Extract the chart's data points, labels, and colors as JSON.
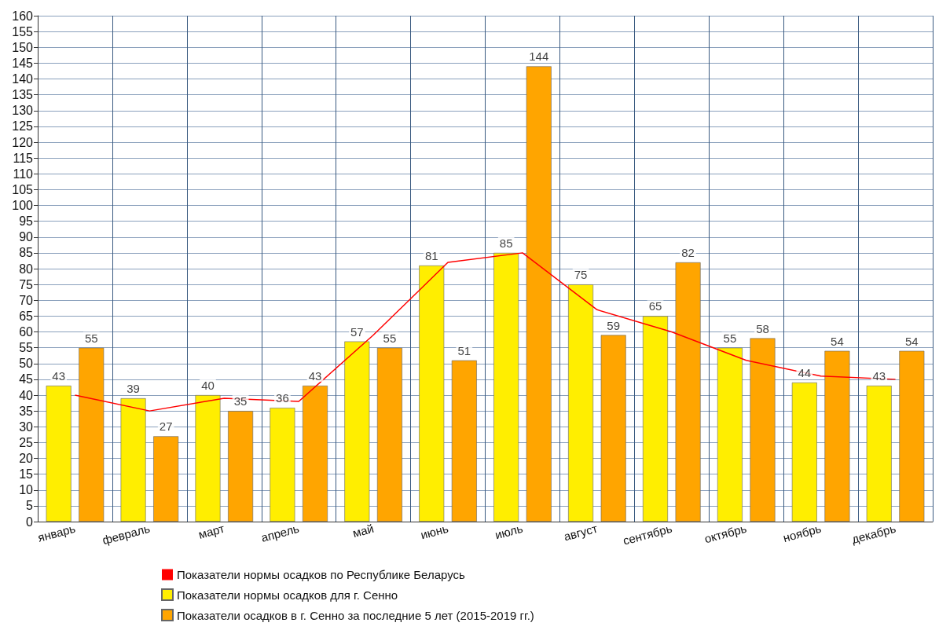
{
  "chart_data": {
    "type": "bar",
    "categories": [
      "январь",
      "февраль",
      "март",
      "апрель",
      "май",
      "июнь",
      "июль",
      "август",
      "сентябрь",
      "октябрь",
      "ноябрь",
      "декабрь"
    ],
    "series": [
      {
        "name": "Показатели нормы осадков по Республике Беларусь",
        "type": "line",
        "color": "#ff0000",
        "values": [
          40,
          35,
          39,
          38,
          59,
          82,
          85,
          67,
          60,
          51,
          46,
          45
        ]
      },
      {
        "name": "Показатели нормы осадков для г. Сенно",
        "color": "#ffee00",
        "values": [
          43,
          39,
          40,
          36,
          57,
          81,
          85,
          75,
          65,
          55,
          44,
          43
        ],
        "value_labels": [
          "43",
          "39",
          "40",
          "36",
          "57",
          "81",
          "85",
          "75",
          "65",
          "55",
          "44",
          "43"
        ]
      },
      {
        "name": "Показатели осадков в г. Сенно за последние 5 лет (2015-2019 гг.)",
        "color": "#ffa500",
        "values": [
          55,
          27,
          35,
          43,
          55,
          51,
          144,
          59,
          82,
          58,
          54,
          54
        ],
        "value_labels": [
          "55",
          "27",
          "35",
          "43",
          "55",
          "51",
          "144",
          "59",
          "82",
          "58",
          "54",
          "54"
        ]
      }
    ],
    "ylim": [
      0,
      160
    ],
    "yticks": [
      0,
      5,
      10,
      15,
      20,
      25,
      30,
      35,
      40,
      45,
      50,
      55,
      60,
      65,
      70,
      75,
      80,
      85,
      90,
      95,
      100,
      105,
      110,
      115,
      120,
      125,
      130,
      135,
      140,
      145,
      150,
      155,
      160
    ],
    "grid": true,
    "legend": "bottom",
    "marker": "none",
    "line_style": "solid"
  }
}
